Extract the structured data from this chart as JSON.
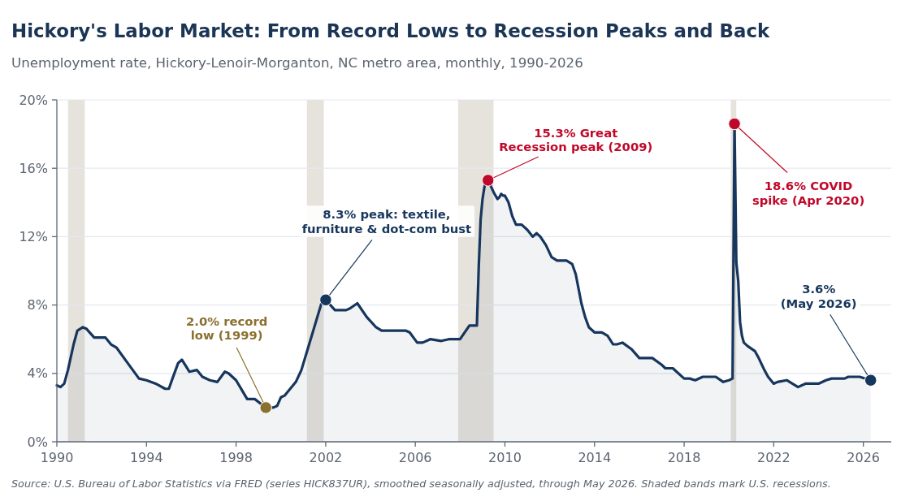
{
  "chart_data": {
    "type": "area",
    "title": "Hickory's Labor Market: From Record Lows to Recession Peaks and Back",
    "subtitle": "Unemployment rate, Hickory-Lenoir-Morganton, NC metro area, monthly, 1990-2026",
    "xlim": [
      "1990-01",
      "2027-04"
    ],
    "ylim": [
      0,
      20
    ],
    "xticks": [
      "1990",
      "1994",
      "1998",
      "2002",
      "2006",
      "2010",
      "2014",
      "2018",
      "2022",
      "2026"
    ],
    "yticks": [
      {
        "value": 0,
        "label": "0%"
      },
      {
        "value": 4,
        "label": "4%"
      },
      {
        "value": 8,
        "label": "8%"
      },
      {
        "value": 12,
        "label": "12%"
      },
      {
        "value": 16,
        "label": "16%"
      },
      {
        "value": 20,
        "label": "20%"
      }
    ],
    "grid": "y",
    "bands": [
      {
        "axis": "x",
        "from": "1990-07",
        "to": "1991-03-31",
        "color": "#e6e3dc"
      },
      {
        "axis": "x",
        "from": "2001-03",
        "to": "2001-11-30",
        "color": "#e6e3dc"
      },
      {
        "axis": "x",
        "from": "2007-12",
        "to": "2009-06-30",
        "color": "#e6e3dc"
      },
      {
        "axis": "x",
        "from": "2020-02",
        "to": "2020-04-30",
        "color": "#e6e3dc"
      }
    ],
    "series": [
      {
        "color": "#17365d",
        "x": [
          "1990-01",
          "1990-03",
          "1990-05",
          "1990-07",
          "1990-10",
          "1990-12",
          "1991-03",
          "1991-05",
          "1991-09",
          "1992-03",
          "1992-06",
          "1992-09",
          "1993-03",
          "1993-09",
          "1994-01",
          "1994-06",
          "1994-11",
          "1995-01",
          "1995-03",
          "1995-06",
          "1995-08",
          "1995-12",
          "1996-04",
          "1996-07",
          "1996-11",
          "1997-03",
          "1997-07",
          "1997-09",
          "1998-01",
          "1998-07",
          "1998-11",
          "1999-05",
          "1999-09",
          "1999-11",
          "2000-01",
          "2000-03",
          "2000-09",
          "2000-12",
          "2001-05",
          "2001-11",
          "2002-01",
          "2002-06",
          "2002-12",
          "2003-02",
          "2003-06",
          "2003-11",
          "2004-04",
          "2004-07",
          "2005-06",
          "2005-08",
          "2005-10",
          "2006-02",
          "2006-05",
          "2006-09",
          "2007-03",
          "2007-07",
          "2008-01",
          "2008-06",
          "2008-10",
          "2008-11",
          "2008-12",
          "2009-01",
          "2009-02",
          "2009-03",
          "2009-04",
          "2009-07",
          "2009-09",
          "2009-10",
          "2009-11",
          "2009-12",
          "2010-01",
          "2010-03",
          "2010-05",
          "2010-07",
          "2010-10",
          "2011-01",
          "2011-04",
          "2011-06",
          "2011-08",
          "2011-11",
          "2012-02",
          "2012-05",
          "2012-10",
          "2013-01",
          "2013-03",
          "2013-06",
          "2013-08",
          "2013-10",
          "2014-01",
          "2014-05",
          "2014-08",
          "2014-11",
          "2015-01",
          "2015-04",
          "2015-09",
          "2016-01",
          "2016-08",
          "2017-01",
          "2017-03",
          "2017-07",
          "2018-01",
          "2018-04",
          "2018-07",
          "2018-11",
          "2019-06",
          "2019-10",
          "2020-01",
          "2020-03",
          "2020-04",
          "2020-05",
          "2020-06",
          "2020-07",
          "2020-08",
          "2020-09",
          "2020-11",
          "2021-03",
          "2021-05",
          "2021-08",
          "2021-10",
          "2022-01",
          "2022-03",
          "2022-08",
          "2022-11",
          "2023-02",
          "2023-06",
          "2024-01",
          "2024-05",
          "2024-08",
          "2025-03",
          "2025-05",
          "2025-11",
          "2026-05"
        ],
        "values": [
          3.3,
          3.2,
          3.4,
          4.2,
          5.7,
          6.5,
          6.7,
          6.6,
          6.1,
          6.1,
          5.7,
          5.5,
          4.6,
          3.7,
          3.6,
          3.4,
          3.1,
          3.1,
          3.7,
          4.6,
          4.8,
          4.1,
          4.2,
          3.8,
          3.6,
          3.5,
          4.1,
          4.0,
          3.6,
          2.5,
          2.5,
          2.0,
          2.0,
          2.1,
          2.6,
          2.7,
          3.5,
          4.2,
          6.0,
          8.2,
          8.3,
          7.7,
          7.7,
          7.8,
          8.1,
          7.3,
          6.7,
          6.5,
          6.5,
          6.5,
          6.4,
          5.8,
          5.8,
          6.0,
          5.9,
          6.0,
          6.0,
          6.8,
          6.8,
          10.3,
          13.0,
          14.2,
          14.9,
          15.2,
          15.3,
          14.6,
          14.2,
          14.3,
          14.5,
          14.4,
          14.4,
          14.0,
          13.2,
          12.7,
          12.7,
          12.4,
          12.0,
          12.2,
          12.0,
          11.5,
          10.8,
          10.6,
          10.6,
          10.4,
          9.8,
          8.1,
          7.3,
          6.7,
          6.4,
          6.4,
          6.2,
          5.7,
          5.7,
          5.8,
          5.4,
          4.9,
          4.9,
          4.5,
          4.3,
          4.3,
          3.7,
          3.7,
          3.6,
          3.8,
          3.8,
          3.5,
          3.6,
          3.7,
          18.6,
          10.5,
          9.4,
          7.0,
          6.2,
          5.8,
          5.6,
          5.3,
          4.9,
          4.2,
          3.8,
          3.4,
          3.5,
          3.6,
          3.4,
          3.2,
          3.4,
          3.4,
          3.6,
          3.7,
          3.7,
          3.8,
          3.8,
          3.6
        ]
      },
      {
        "type": "scatter",
        "marker": "circle",
        "colors": [
          "#8b7030",
          "#17365d",
          "#c0082a",
          "#c0082a",
          "#17365d"
        ],
        "x": [
          "1999-05",
          "2002-01",
          "2009-04",
          "2020-04",
          "2026-05"
        ],
        "values": [
          2.0,
          8.3,
          15.3,
          18.6,
          3.6
        ]
      }
    ],
    "annotations": [
      {
        "text": "2.0% record\nlow (1999)",
        "x": "1999-05",
        "y": 2.0
      },
      {
        "text": "8.3% peak: textile,\nfurniture & dot-com bust",
        "x": "2002-01",
        "y": 8.3
      },
      {
        "text": "15.3% Great\nRecession peak (2009)",
        "x": "2009-04",
        "y": 15.3
      },
      {
        "text": "18.6% COVID\nspike (Apr 2020)",
        "x": "2020-04",
        "y": 18.6
      },
      {
        "text": "3.6%\n(May 2026)",
        "x": "2026-05",
        "y": 3.6
      },
      "Source: U.S. Bureau of Labor Statistics via FRED (series HICK837UR), smoothed seasonally adjusted, through May 2026. Shaded bands mark U.S. recessions."
    ]
  }
}
